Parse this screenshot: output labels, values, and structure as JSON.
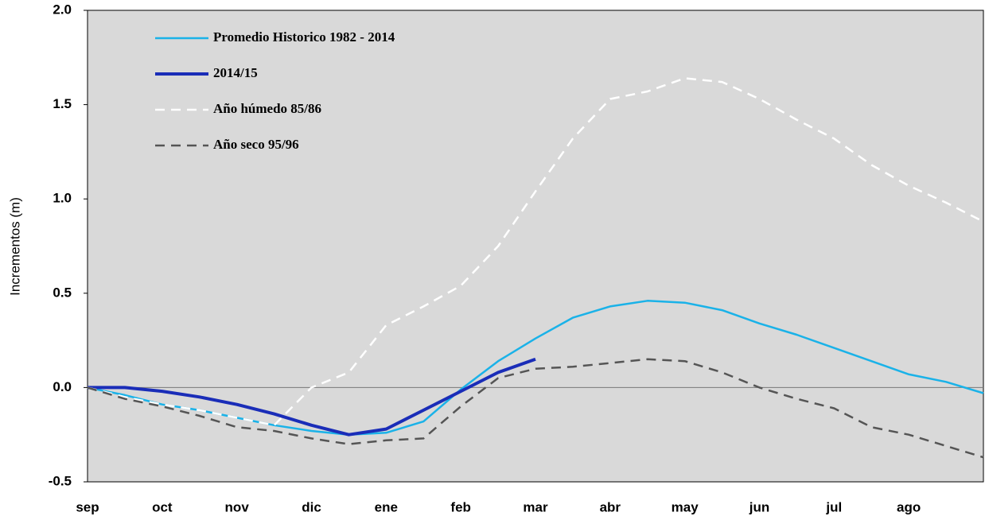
{
  "chart_data": {
    "type": "line",
    "y_label": "Incrementos (m)",
    "categories": [
      "sep",
      null,
      "oct",
      null,
      "nov",
      null,
      "dic",
      null,
      "ene",
      null,
      "feb",
      null,
      "mar",
      null,
      "abr",
      null,
      "may",
      null,
      "jun",
      null,
      "jul",
      null,
      "ago",
      null,
      null
    ],
    "ylim": [
      -0.5,
      2.0
    ],
    "yticks": [
      {
        "value": -0.5,
        "label": "-0.5"
      },
      {
        "value": 0,
        "label": "0.0"
      },
      {
        "value": 0.5,
        "label": "0.5"
      },
      {
        "value": 1,
        "label": "1.0"
      },
      {
        "value": 1.5,
        "label": "1.5"
      },
      {
        "value": 2,
        "label": "2.0"
      }
    ],
    "zero_line": true,
    "legend": "upper left",
    "series": [
      {
        "name": "Promedio Historico 1982 - 2014",
        "color": "#1ab2e8",
        "width": 2.5,
        "dashed": false,
        "values": [
          0,
          -0.04,
          -0.09,
          -0.12,
          -0.16,
          -0.2,
          -0.23,
          -0.25,
          -0.24,
          -0.18,
          -0.01,
          0.14,
          0.26,
          0.37,
          0.43,
          0.46,
          0.45,
          0.41,
          0.34,
          0.28,
          0.21,
          0.14,
          0.07,
          0.03,
          -0.03
        ]
      },
      {
        "name": "2014/15",
        "color": "#1a2db8",
        "width": 4,
        "dashed": false,
        "values": [
          0,
          0,
          -0.02,
          -0.05,
          -0.09,
          -0.14,
          -0.2,
          -0.25,
          -0.22,
          -0.12,
          -0.02,
          0.08,
          0.15,
          null,
          null,
          null,
          null,
          null,
          null,
          null,
          null,
          null,
          null,
          null,
          null
        ]
      },
      {
        "name": "Año húmedo 85/86",
        "color": "#ffffff",
        "width": 2.5,
        "dashed": true,
        "values": [
          0,
          -0.05,
          -0.09,
          -0.12,
          -0.16,
          -0.2,
          0,
          0.08,
          0.33,
          0.43,
          0.54,
          0.75,
          1.04,
          1.32,
          1.53,
          1.57,
          1.64,
          1.62,
          1.53,
          1.42,
          1.32,
          1.18,
          1.07,
          0.98,
          0.88
        ]
      },
      {
        "name": "Año seco 95/96",
        "color": "#555555",
        "width": 2.5,
        "dashed": true,
        "values": [
          0,
          -0.06,
          -0.1,
          -0.15,
          -0.21,
          -0.23,
          -0.27,
          -0.3,
          -0.28,
          -0.27,
          -0.1,
          0.05,
          0.1,
          0.11,
          0.13,
          0.15,
          0.14,
          0.08,
          0,
          -0.06,
          -0.11,
          -0.21,
          -0.25,
          -0.31,
          -0.37
        ]
      }
    ]
  }
}
